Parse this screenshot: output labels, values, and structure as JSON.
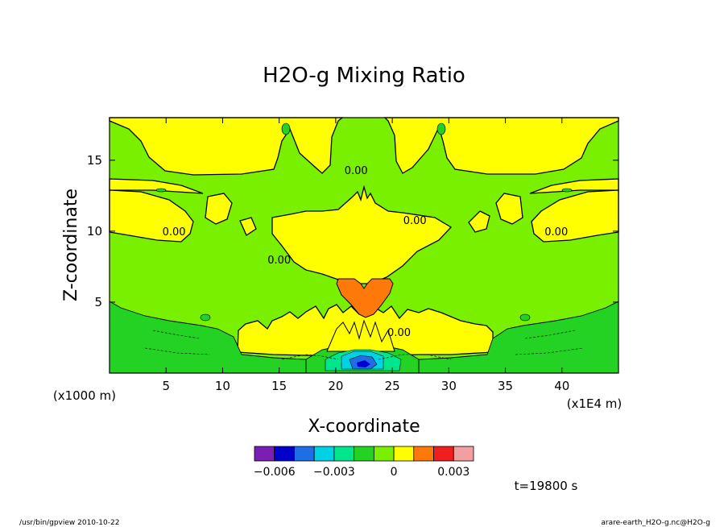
{
  "chart_data": {
    "type": "heatmap",
    "title": "H2O-g Mixing Ratio",
    "xlabel": "X-coordinate",
    "ylabel": "Z-coordinate",
    "xlim": [
      0,
      45
    ],
    "ylim": [
      0,
      18
    ],
    "x_ticks": [
      5,
      10,
      15,
      20,
      25,
      30,
      35,
      40
    ],
    "x_tick_labels": [
      "5",
      "10",
      "15",
      "20",
      "25",
      "30",
      "35",
      "40"
    ],
    "y_ticks": [
      5,
      10,
      15
    ],
    "y_tick_labels": [
      "5",
      "10",
      "15"
    ],
    "x_unit_note": "(x1E4 m)",
    "y_unit_note": "(x1000 m)",
    "contour_labels": [
      {
        "text": "0.00",
        "x": 21.8,
        "z": 14.3
      },
      {
        "text": "0.00",
        "x": 27.0,
        "z": 10.8
      },
      {
        "text": "0.00",
        "x": 5.7,
        "z": 10.0
      },
      {
        "text": "0.00",
        "x": 39.5,
        "z": 10.0
      },
      {
        "text": "0.00",
        "x": 15.0,
        "z": 8.0
      },
      {
        "text": "0.00",
        "x": 25.6,
        "z": 2.9
      }
    ],
    "colorbar": {
      "colors": [
        "#7a1eb4",
        "#0000cd",
        "#1e6ee6",
        "#00d2e6",
        "#00e68c",
        "#23d223",
        "#78f000",
        "#ffff00",
        "#ff780a",
        "#f01e1e",
        "#f0a0a0"
      ],
      "tick_labels": [
        "−0.006",
        "−0.003",
        "0",
        "0.003"
      ],
      "tick_values": [
        -0.006,
        -0.003,
        0,
        0.003
      ],
      "range": [
        -0.007,
        0.004
      ]
    },
    "time_label": "t=19800 s"
  },
  "footer": {
    "left": "/usr/bin/gpview  2010-10-22",
    "right": "arare-earth_H2O-g.nc@H2O-g"
  }
}
